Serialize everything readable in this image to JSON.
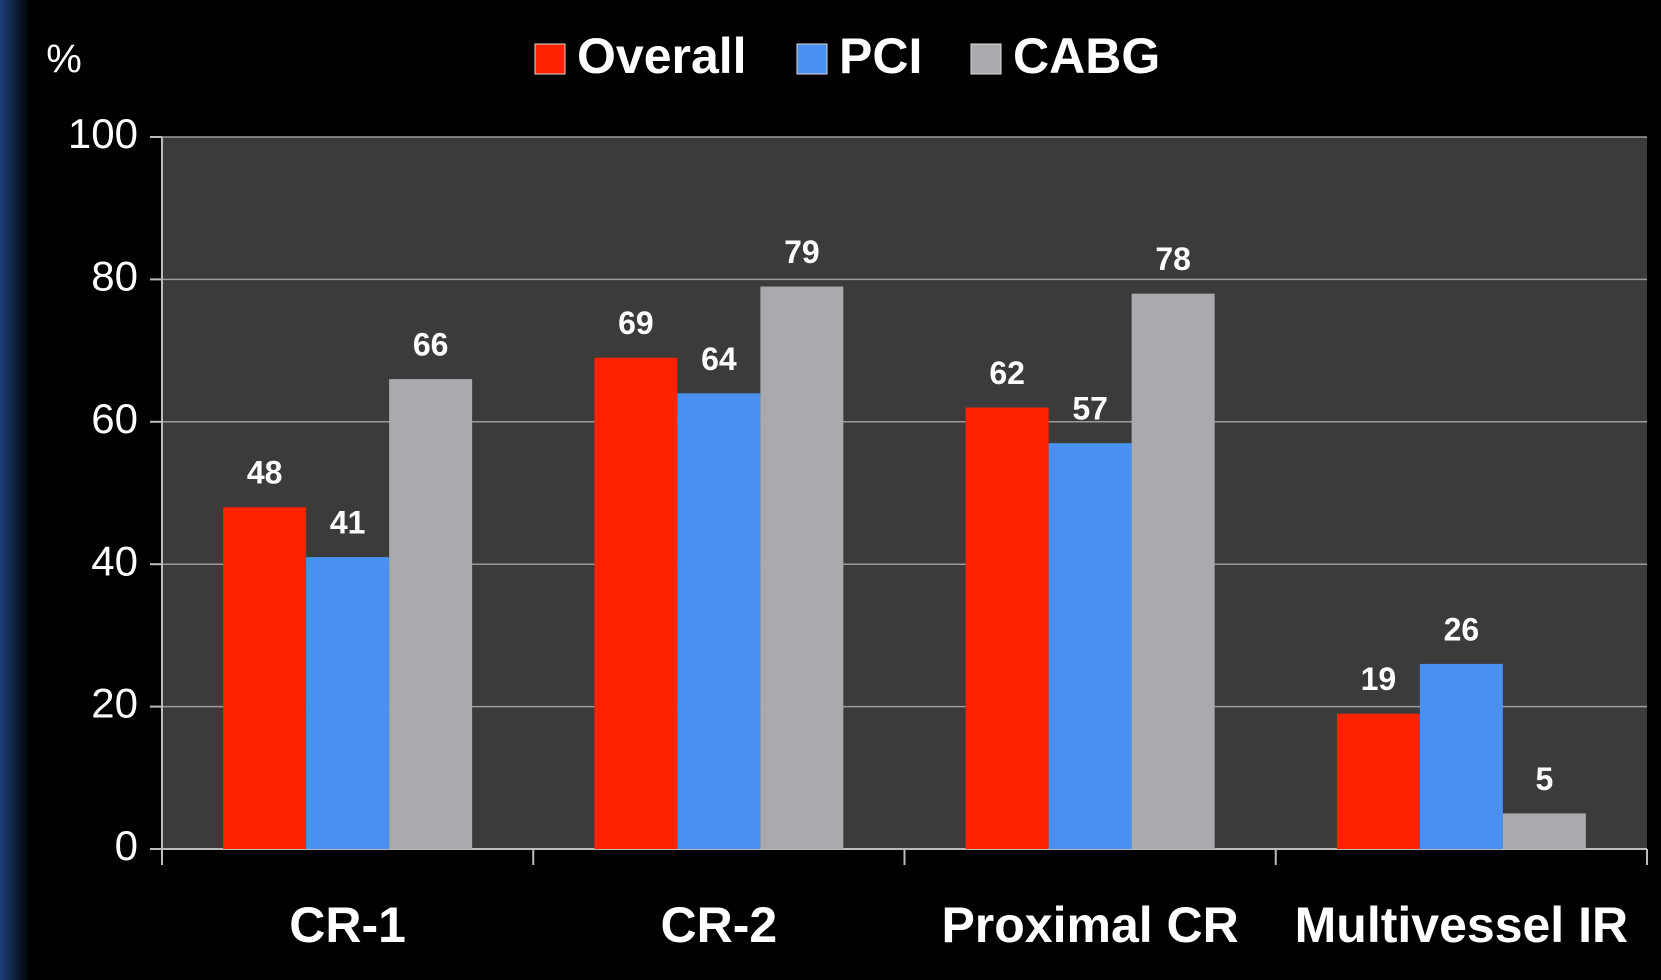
{
  "chart_data": {
    "type": "bar",
    "y_label": "%",
    "categories": [
      "CR-1",
      "CR-2",
      "Proximal CR",
      "Multivessel IR"
    ],
    "series": [
      {
        "name": "Overall",
        "color": "#ff2200",
        "values": [
          48,
          69,
          62,
          19
        ]
      },
      {
        "name": "PCI",
        "color": "#4a90f0",
        "values": [
          41,
          64,
          57,
          26
        ]
      },
      {
        "name": "CABG",
        "color": "#a8aaae",
        "values": [
          66,
          79,
          78,
          5
        ]
      }
    ],
    "ylim": [
      0,
      100
    ],
    "yticks": [
      0,
      20,
      40,
      60,
      80,
      100
    ],
    "grid": true,
    "legend": "top"
  }
}
